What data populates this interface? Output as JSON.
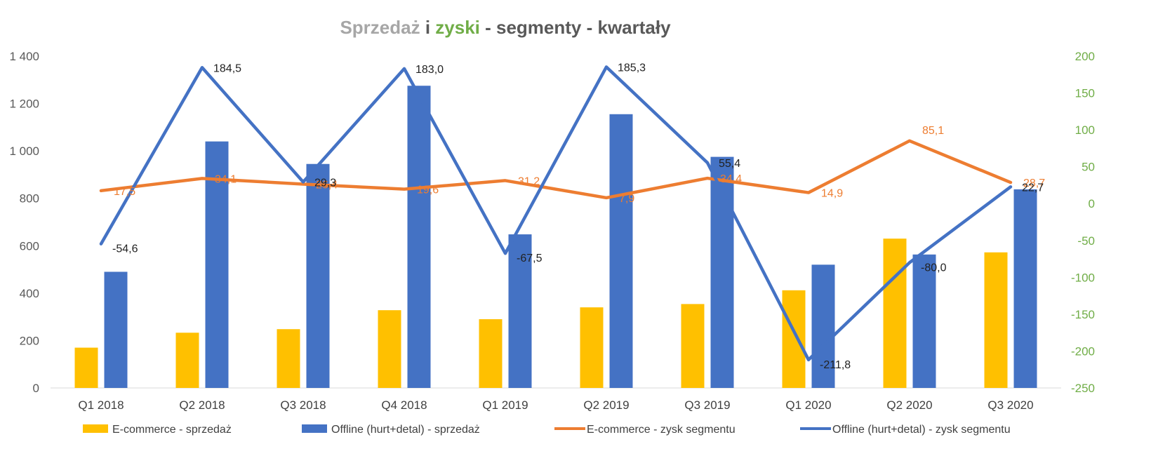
{
  "chart_data": {
    "type": "bar",
    "title_parts": [
      {
        "text": "Sprzedaż",
        "color": "#a6a6a6"
      },
      {
        "text": " i ",
        "color": "#595959"
      },
      {
        "text": "zyski",
        "color": "#70ad47"
      },
      {
        "text": " - segmenty - kwartały",
        "color": "#595959"
      }
    ],
    "categories": [
      "Q1 2018",
      "Q2 2018",
      "Q3 2018",
      "Q4 2018",
      "Q1 2019",
      "Q2 2019",
      "Q3 2019",
      "Q1 2020",
      "Q2 2020",
      "Q3 2020"
    ],
    "left_axis": {
      "range": [
        0,
        1400
      ],
      "ticks": [
        0,
        200,
        400,
        600,
        800,
        1000,
        1200,
        1400
      ],
      "tick_labels": [
        "0",
        "200",
        "400",
        "600",
        "800",
        "1 000",
        "1 200",
        "1 400"
      ]
    },
    "right_axis": {
      "range": [
        -250,
        200
      ],
      "ticks": [
        -250,
        -200,
        -150,
        -100,
        -50,
        0,
        50,
        100,
        150,
        200
      ],
      "tick_labels": [
        "-250",
        "-200",
        "-150",
        "-100",
        "-50",
        "0",
        "50",
        "100",
        "150",
        "200"
      ]
    },
    "series": [
      {
        "name": "E-commerce - sprzedaż",
        "kind": "bar",
        "axis": "left",
        "color": "#ffc000",
        "values": [
          170,
          233,
          248,
          328,
          290,
          340,
          354,
          412,
          630,
          572
        ]
      },
      {
        "name": "Offline (hurt+detal) - sprzedaż",
        "kind": "bar",
        "axis": "left",
        "color": "#4472c4",
        "values": [
          490,
          1040,
          945,
          1275,
          648,
          1155,
          975,
          520,
          563,
          838
        ]
      },
      {
        "name": "E-commerce - zysk segmentu",
        "kind": "line",
        "axis": "right",
        "color": "#ed7d31",
        "values": [
          17.5,
          34.1,
          26.4,
          19.6,
          31.2,
          7.9,
          34.4,
          14.9,
          85.1,
          28.7
        ],
        "labels": [
          "17,5",
          "34,1",
          "26,4",
          "19,6",
          "31,2",
          "7,9",
          "34,4",
          "14,9",
          "85,1",
          "28,7"
        ]
      },
      {
        "name": "Offline (hurt+detal) - zysk segmentu",
        "kind": "line",
        "axis": "right",
        "color": "#4472c4",
        "values": [
          -54.6,
          184.5,
          29.3,
          183.0,
          -67.5,
          185.3,
          55.4,
          -211.8,
          -80.0,
          22.7
        ],
        "labels": [
          "-54,6",
          "184,5",
          "29,3",
          "183,0",
          "-67,5",
          "185,3",
          "55,4",
          "-211,8",
          "-80,0",
          "22,7"
        ]
      }
    ],
    "grid": false,
    "legend_position": "bottom"
  }
}
